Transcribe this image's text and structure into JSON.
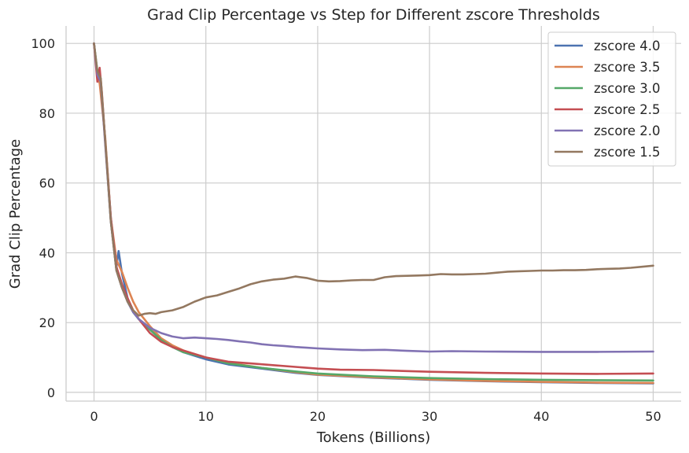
{
  "chart_data": {
    "type": "line",
    "title": "Grad Clip Percentage vs Step for Different zscore Thresholds",
    "xlabel": "Tokens (Billions)",
    "ylabel": "Grad Clip Percentage",
    "xlim": [
      -2.5,
      52.5
    ],
    "ylim": [
      -2.5,
      105
    ],
    "xticks": [
      0,
      10,
      20,
      30,
      40,
      50
    ],
    "yticks": [
      0,
      20,
      40,
      60,
      80,
      100
    ],
    "grid": true,
    "legend_position": "top-right",
    "series": [
      {
        "name": "zscore 4.0",
        "color": "#4c72b0",
        "x": [
          0,
          0.3,
          0.6,
          1,
          1.5,
          2,
          2.2,
          2.5,
          3,
          3.5,
          4,
          5,
          6,
          7,
          8,
          10,
          12,
          15,
          18,
          20,
          25,
          30,
          35,
          40,
          45,
          50
        ],
        "y": [
          100,
          91,
          89,
          72,
          50,
          36,
          40.5,
          34,
          27,
          23,
          21,
          18,
          15,
          13,
          11.5,
          9.5,
          8,
          6.8,
          5.6,
          5.0,
          4.2,
          3.6,
          3.2,
          2.9,
          2.7,
          2.6
        ]
      },
      {
        "name": "zscore 3.5",
        "color": "#dd8452",
        "x": [
          0,
          0.3,
          0.5,
          1,
          1.5,
          2,
          2.5,
          3,
          3.5,
          4,
          5,
          6,
          7,
          8,
          10,
          12,
          15,
          18,
          20,
          25,
          30,
          35,
          40,
          45,
          50
        ],
        "y": [
          100,
          91,
          88.5,
          73,
          50,
          38,
          34.5,
          30,
          26,
          23,
          19,
          15.5,
          13.5,
          12,
          10,
          8.5,
          7,
          5.8,
          5.1,
          4.3,
          3.7,
          3.3,
          3.0,
          2.8,
          2.7
        ]
      },
      {
        "name": "zscore 3.0",
        "color": "#55a868",
        "x": [
          0,
          0.3,
          0.6,
          1,
          1.5,
          2,
          2.5,
          3,
          3.5,
          4,
          5,
          6,
          7,
          8,
          10,
          12,
          15,
          18,
          20,
          25,
          30,
          35,
          40,
          45,
          50
        ],
        "y": [
          100,
          92,
          89,
          72,
          49,
          35,
          30,
          26,
          23,
          21,
          18,
          15,
          13,
          11.5,
          10,
          8.3,
          7,
          6,
          5.4,
          4.6,
          4.1,
          3.8,
          3.6,
          3.5,
          3.4
        ]
      },
      {
        "name": "zscore 2.5",
        "color": "#c44e52",
        "x": [
          0,
          0.3,
          0.5,
          0.7,
          1,
          1.5,
          2,
          2.5,
          3,
          3.5,
          4,
          5,
          6,
          7,
          8,
          10,
          12,
          14,
          16,
          18,
          20,
          22,
          25,
          30,
          35,
          40,
          45,
          50
        ],
        "y": [
          100,
          89,
          93,
          86,
          72,
          50,
          36,
          31,
          27,
          23.5,
          21,
          17,
          14.5,
          13,
          12,
          10,
          8.8,
          8.3,
          7.8,
          7.3,
          6.8,
          6.5,
          6.4,
          5.9,
          5.6,
          5.4,
          5.3,
          5.4
        ]
      },
      {
        "name": "zscore 2.0",
        "color": "#8172b3",
        "x": [
          0,
          0.3,
          0.6,
          1,
          1.5,
          2,
          2.5,
          3,
          3.5,
          4,
          5,
          6,
          7,
          8,
          9,
          10,
          11,
          12,
          13,
          14,
          15,
          16,
          17,
          18,
          19,
          20,
          22,
          24,
          26,
          28,
          30,
          32,
          35,
          40,
          45,
          50
        ],
        "y": [
          100,
          91,
          89,
          71,
          49,
          35,
          30,
          26,
          23,
          21,
          18.5,
          17,
          16,
          15.5,
          15.7,
          15.5,
          15.3,
          15,
          14.6,
          14.3,
          13.8,
          13.5,
          13.3,
          13.0,
          12.8,
          12.6,
          12.3,
          12.1,
          12.2,
          11.9,
          11.7,
          11.8,
          11.7,
          11.6,
          11.6,
          11.7
        ]
      },
      {
        "name": "zscore 1.5",
        "color": "#937860",
        "x": [
          0,
          0.3,
          0.6,
          1,
          1.5,
          2,
          2.5,
          3,
          3.5,
          4,
          4.5,
          5,
          5.5,
          6,
          7,
          8,
          9,
          10,
          11,
          12,
          13,
          14,
          15,
          16,
          17,
          18,
          19,
          20,
          21,
          22,
          23,
          24,
          25,
          26,
          27,
          28,
          29,
          30,
          31,
          32,
          33,
          34,
          35,
          36,
          37,
          38,
          39,
          40,
          41,
          42,
          43,
          44,
          45,
          46,
          47,
          48,
          49,
          50
        ],
        "y": [
          100,
          92,
          90,
          72,
          49,
          35,
          30,
          26,
          23.5,
          22,
          22.5,
          22.7,
          22.5,
          23,
          23.5,
          24.5,
          26,
          27.2,
          27.8,
          28.8,
          29.8,
          31,
          31.8,
          32.3,
          32.6,
          33.2,
          32.8,
          32,
          31.8,
          31.9,
          32.1,
          32.2,
          32.2,
          33.0,
          33.3,
          33.4,
          33.5,
          33.6,
          33.9,
          33.8,
          33.8,
          33.9,
          34.0,
          34.3,
          34.6,
          34.7,
          34.8,
          34.9,
          34.9,
          35.0,
          35.0,
          35.1,
          35.3,
          35.4,
          35.5,
          35.7,
          36.0,
          36.3
        ]
      }
    ]
  }
}
